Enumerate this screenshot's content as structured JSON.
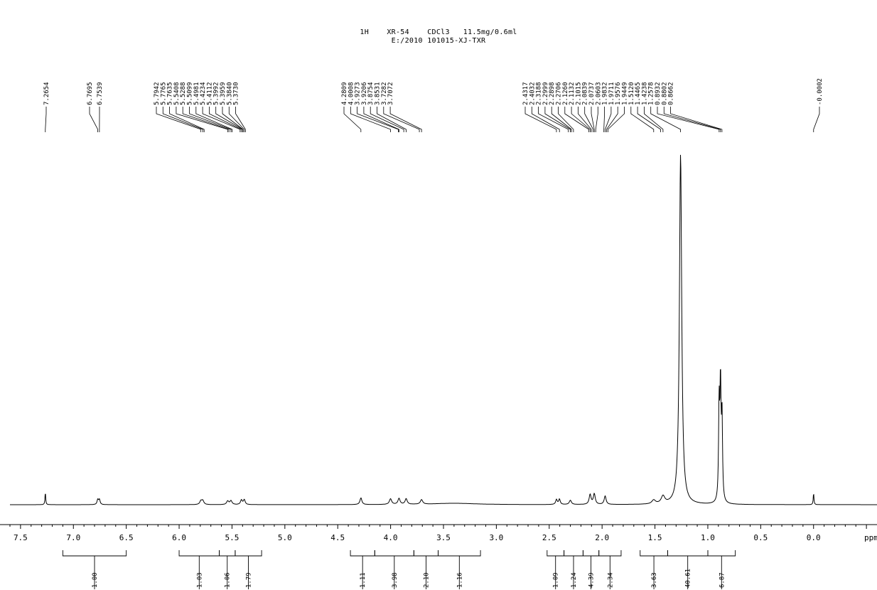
{
  "header": {
    "line1": "1H    XR-54    CDCl3   11.5mg/0.6ml",
    "line2": "E:/2010 101015-XJ-TXR"
  },
  "chart_data": {
    "type": "line",
    "xlabel": "ppm",
    "xlim": [
      7.6,
      -0.6
    ],
    "x_reversed": true,
    "x_ticks": [
      7.5,
      7.0,
      6.5,
      6.0,
      5.5,
      5.0,
      4.5,
      4.0,
      3.5,
      3.0,
      2.5,
      2.0,
      1.5,
      1.0,
      0.5,
      0.0
    ],
    "x_tick_labels": [
      "7.5",
      "7.0",
      "6.5",
      "6.0",
      "5.5",
      "5.0",
      "4.5",
      "4.0",
      "3.5",
      "3.0",
      "2.5",
      "2.0",
      "1.5",
      "1.0",
      "0.5",
      "0.0"
    ],
    "peak_labels": [
      {
        "group": [
          7.2654
        ]
      },
      {
        "group": [
          6.7695,
          6.7539
        ]
      },
      {
        "group": [
          5.7942,
          5.7765,
          5.7635,
          5.5408,
          5.5288,
          5.5099,
          5.4981,
          5.4234,
          5.4112,
          5.3992,
          5.3959,
          5.384,
          5.373
        ]
      },
      {
        "group": [
          4.2809,
          4.0008,
          3.9273,
          3.9206,
          3.8754,
          3.8531,
          3.7282,
          3.7072
        ]
      },
      {
        "group": [
          2.4317,
          2.4032,
          2.3188,
          2.2999,
          2.2898,
          2.2706,
          2.126,
          2.1132,
          2.1015,
          2.0839,
          2.0737,
          2.0603,
          1.9832,
          1.9711,
          1.9576,
          1.9449,
          1.512,
          1.4465,
          1.4238,
          1.2578,
          0.8932,
          0.8802,
          0.8662
        ]
      },
      {
        "group": [
          -0.0002
        ]
      }
    ],
    "peak_label_text": [
      [
        "7.2654"
      ],
      [
        "6.7695",
        "6.7539"
      ],
      [
        "5.7942",
        "5.7765",
        "5.7635",
        "5.5408",
        "5.5288",
        "5.5099",
        "5.4981",
        "5.4234",
        "5.4112",
        "5.3992",
        "5.3959",
        "5.3840",
        "5.3730"
      ],
      [
        "4.2809",
        "4.0008",
        "3.9273",
        "3.9206",
        "3.8754",
        "3.8531",
        "3.7282",
        "3.7072"
      ],
      [
        "2.4317",
        "2.4032",
        "2.3188",
        "2.2999",
        "2.2898",
        "2.2706",
        "2.1260",
        "2.1132",
        "2.1015",
        "2.0839",
        "2.0737",
        "2.0603",
        "1.9832",
        "1.9711",
        "1.9576",
        "1.9449",
        "1.5120",
        "1.4465",
        "1.4238",
        "1.2578",
        "0.8932",
        "0.8802",
        "0.8662"
      ],
      [
        "-0.0002"
      ]
    ],
    "peaks": [
      {
        "ppm": 7.2654,
        "height": 0.035,
        "width": 0.004
      },
      {
        "ppm": 6.7695,
        "height": 0.014,
        "width": 0.008
      },
      {
        "ppm": 6.7539,
        "height": 0.014,
        "width": 0.008
      },
      {
        "ppm": 5.7942,
        "height": 0.01,
        "width": 0.012
      },
      {
        "ppm": 5.7765,
        "height": 0.011,
        "width": 0.012
      },
      {
        "ppm": 5.5408,
        "height": 0.01,
        "width": 0.012
      },
      {
        "ppm": 5.5099,
        "height": 0.011,
        "width": 0.012
      },
      {
        "ppm": 5.4112,
        "height": 0.013,
        "width": 0.01
      },
      {
        "ppm": 5.384,
        "height": 0.014,
        "width": 0.01
      },
      {
        "ppm": 4.2809,
        "height": 0.019,
        "width": 0.011
      },
      {
        "ppm": 4.0008,
        "height": 0.016,
        "width": 0.013
      },
      {
        "ppm": 3.9206,
        "height": 0.017,
        "width": 0.012
      },
      {
        "ppm": 3.8531,
        "height": 0.016,
        "width": 0.012
      },
      {
        "ppm": 3.7072,
        "height": 0.013,
        "width": 0.013
      },
      {
        "ppm": 3.4,
        "height": 0.004,
        "width": 0.25
      },
      {
        "ppm": 2.4317,
        "height": 0.014,
        "width": 0.009
      },
      {
        "ppm": 2.4032,
        "height": 0.015,
        "width": 0.009
      },
      {
        "ppm": 2.2999,
        "height": 0.012,
        "width": 0.012
      },
      {
        "ppm": 2.1132,
        "height": 0.028,
        "width": 0.011
      },
      {
        "ppm": 2.0737,
        "height": 0.03,
        "width": 0.011
      },
      {
        "ppm": 1.9711,
        "height": 0.024,
        "width": 0.011
      },
      {
        "ppm": 1.512,
        "height": 0.011,
        "width": 0.02
      },
      {
        "ppm": 1.4238,
        "height": 0.021,
        "width": 0.02
      },
      {
        "ppm": 1.2578,
        "height": 1.0,
        "width": 0.013
      },
      {
        "ppm": 0.8932,
        "height": 0.27,
        "width": 0.006
      },
      {
        "ppm": 0.8802,
        "height": 0.32,
        "width": 0.006
      },
      {
        "ppm": 0.8662,
        "height": 0.24,
        "width": 0.006
      },
      {
        "ppm": -0.0002,
        "height": 0.033,
        "width": 0.004
      }
    ],
    "integrals": [
      {
        "from": 7.1,
        "to": 6.5,
        "value": "1.00"
      },
      {
        "from": 6.0,
        "to": 5.62,
        "value": "1.03"
      },
      {
        "from": 5.62,
        "to": 5.47,
        "value": "1.06"
      },
      {
        "from": 5.47,
        "to": 5.22,
        "value": "1.79"
      },
      {
        "from": 4.38,
        "to": 4.15,
        "value": "1.11"
      },
      {
        "from": 4.15,
        "to": 3.78,
        "value": "3.98"
      },
      {
        "from": 3.78,
        "to": 3.55,
        "value": "2.10"
      },
      {
        "from": 3.55,
        "to": 3.15,
        "value": "1.16"
      },
      {
        "from": 2.52,
        "to": 2.36,
        "value": "1.09"
      },
      {
        "from": 2.36,
        "to": 2.18,
        "value": "1.24"
      },
      {
        "from": 2.18,
        "to": 2.03,
        "value": "4.39"
      },
      {
        "from": 2.03,
        "to": 1.82,
        "value": "2.34"
      },
      {
        "from": 1.64,
        "to": 1.38,
        "value": "3.63"
      },
      {
        "from": 1.38,
        "to": 1.0,
        "value": "40.61"
      },
      {
        "from": 1.0,
        "to": 0.74,
        "value": "6.87"
      }
    ]
  }
}
